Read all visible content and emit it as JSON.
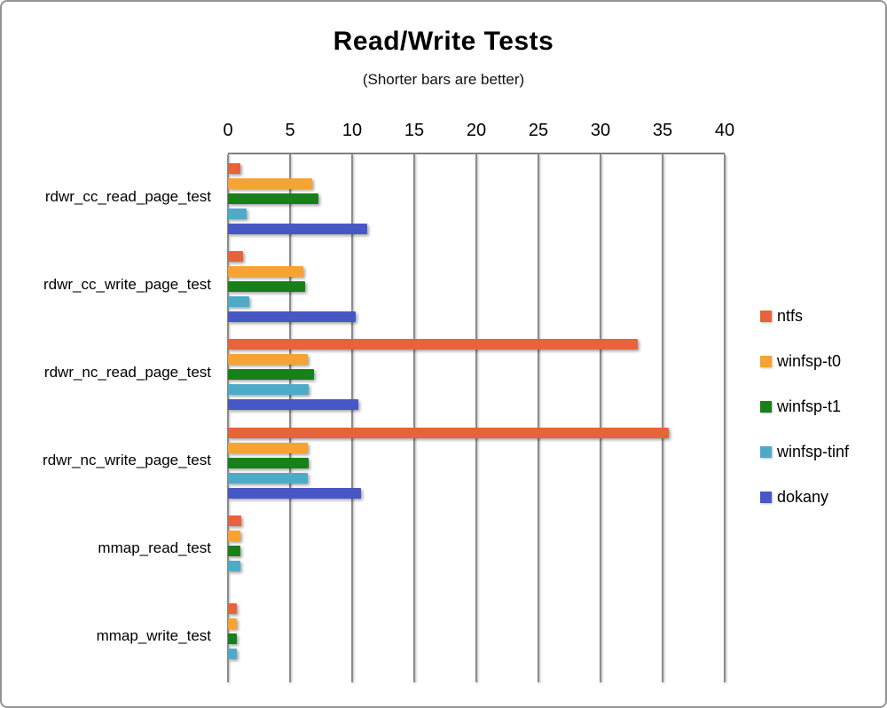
{
  "page": {
    "background": "#ffffff",
    "border_color": "#949494"
  },
  "chart_data": {
    "type": "bar",
    "orientation": "horizontal",
    "title": "Read/Write Tests",
    "subtitle": "(Shorter bars are better)",
    "legend_position": "right",
    "axis": {
      "label_position": "top",
      "min": 0,
      "max": 40,
      "ticks": [
        0,
        5,
        10,
        15,
        20,
        25,
        30,
        35,
        40
      ],
      "gridlines": true,
      "gridline_color": "#8c8c8c"
    },
    "categories": [
      "rdwr_cc_read_page_test",
      "rdwr_cc_write_page_test",
      "rdwr_nc_read_page_test",
      "rdwr_nc_write_page_test",
      "mmap_read_test",
      "mmap_write_test"
    ],
    "series": [
      {
        "name": "ntfs",
        "color": "#E8623B",
        "values": [
          1.0,
          1.2,
          33.0,
          35.5,
          1.1,
          0.7
        ]
      },
      {
        "name": "winfsp-t0",
        "color": "#F5A332",
        "values": [
          6.8,
          6.1,
          6.4,
          6.4,
          1.0,
          0.7
        ]
      },
      {
        "name": "winfsp-t1",
        "color": "#188018",
        "values": [
          7.3,
          6.2,
          6.9,
          6.5,
          1.0,
          0.7
        ]
      },
      {
        "name": "winfsp-tinf",
        "color": "#4FAAC8",
        "values": [
          1.5,
          1.7,
          6.5,
          6.4,
          1.0,
          0.7
        ]
      },
      {
        "name": "dokany",
        "color": "#4757C6",
        "values": [
          11.2,
          10.3,
          10.5,
          10.7,
          0,
          0
        ]
      }
    ]
  }
}
